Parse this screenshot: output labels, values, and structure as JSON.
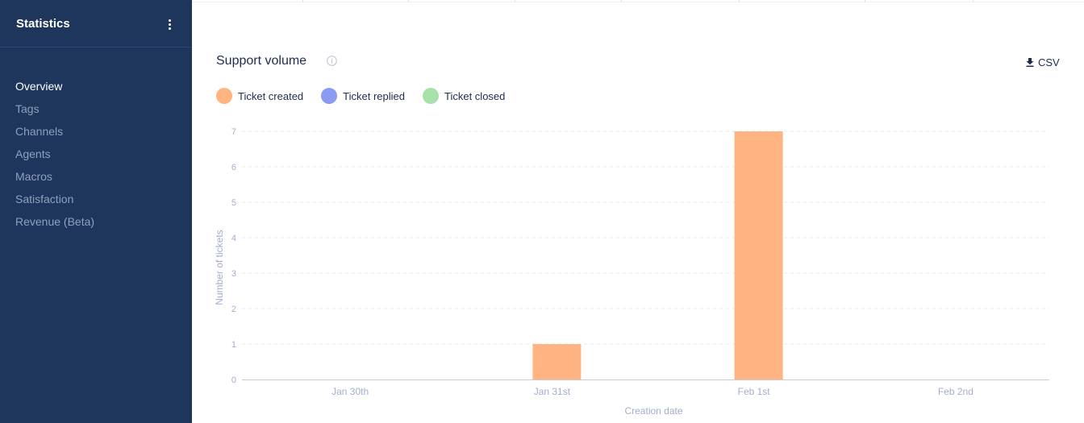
{
  "sidebar": {
    "title": "Statistics",
    "items": [
      {
        "label": "Overview",
        "active": true
      },
      {
        "label": "Tags",
        "active": false
      },
      {
        "label": "Channels",
        "active": false
      },
      {
        "label": "Agents",
        "active": false
      },
      {
        "label": "Macros",
        "active": false
      },
      {
        "label": "Satisfaction",
        "active": false
      },
      {
        "label": "Revenue (Beta)",
        "active": false
      }
    ]
  },
  "card": {
    "title": "Support volume",
    "csv_label": "CSV",
    "legend": [
      {
        "label": "Ticket created",
        "color": "#ffb482"
      },
      {
        "label": "Ticket replied",
        "color": "#8b9af3"
      },
      {
        "label": "Ticket closed",
        "color": "#a6e2a9"
      }
    ]
  },
  "colors": {
    "sidebar_bg": "#1e365c",
    "bar_created": "#ffb482"
  },
  "chart_data": {
    "type": "bar",
    "categories": [
      "Jan 30th",
      "Jan 31st",
      "Feb 1st",
      "Feb 2nd"
    ],
    "series": [
      {
        "name": "Ticket created",
        "values": [
          0,
          1,
          7,
          0
        ]
      },
      {
        "name": "Ticket replied",
        "values": [
          0,
          0,
          0,
          0
        ]
      },
      {
        "name": "Ticket closed",
        "values": [
          0,
          0,
          0,
          0
        ]
      }
    ],
    "xlabel": "Creation date",
    "ylabel": "Number of tickets",
    "ylim": [
      0,
      7
    ],
    "yticks": [
      "0",
      "1",
      "2",
      "3",
      "4",
      "5",
      "6",
      "7"
    ],
    "grid": true
  }
}
